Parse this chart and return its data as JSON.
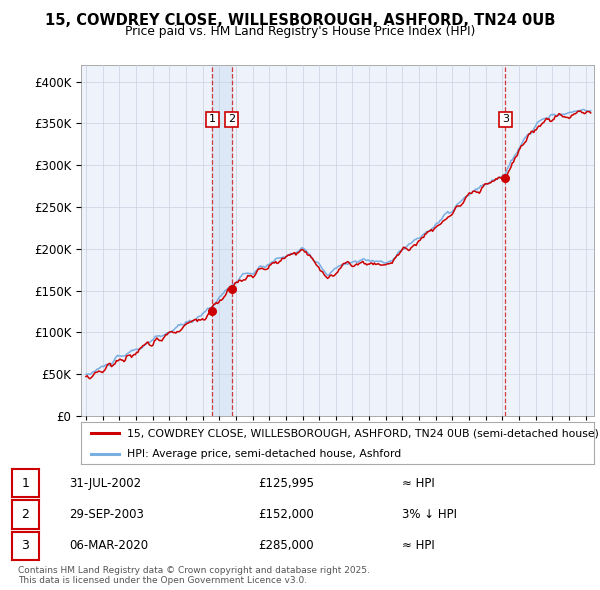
{
  "title": "15, COWDREY CLOSE, WILLESBOROUGH, ASHFORD, TN24 0UB",
  "subtitle": "Price paid vs. HM Land Registry's House Price Index (HPI)",
  "legend_line1": "15, COWDREY CLOSE, WILLESBOROUGH, ASHFORD, TN24 0UB (semi-detached house)",
  "legend_line2": "HPI: Average price, semi-detached house, Ashford",
  "footer": "Contains HM Land Registry data © Crown copyright and database right 2025.\nThis data is licensed under the Open Government Licence v3.0.",
  "transactions": [
    {
      "label": "1",
      "date": "31-JUL-2002",
      "price": 125995,
      "note": "≈ HPI"
    },
    {
      "label": "2",
      "date": "29-SEP-2003",
      "price": 152000,
      "note": "3% ↓ HPI"
    },
    {
      "label": "3",
      "date": "06-MAR-2020",
      "price": 285000,
      "note": "≈ HPI"
    }
  ],
  "trans_dates": [
    2002.58,
    2003.75,
    2020.18
  ],
  "trans_prices": [
    125995,
    152000,
    285000
  ],
  "price_color": "#cc0000",
  "hpi_color": "#7aade0",
  "shade_color": "#dce8f5",
  "background_color": "#eef2fb",
  "ylim": [
    0,
    420000
  ],
  "yticks": [
    0,
    50000,
    100000,
    150000,
    200000,
    250000,
    300000,
    350000,
    400000
  ],
  "xlim_start": 1994.7,
  "xlim_end": 2025.5
}
